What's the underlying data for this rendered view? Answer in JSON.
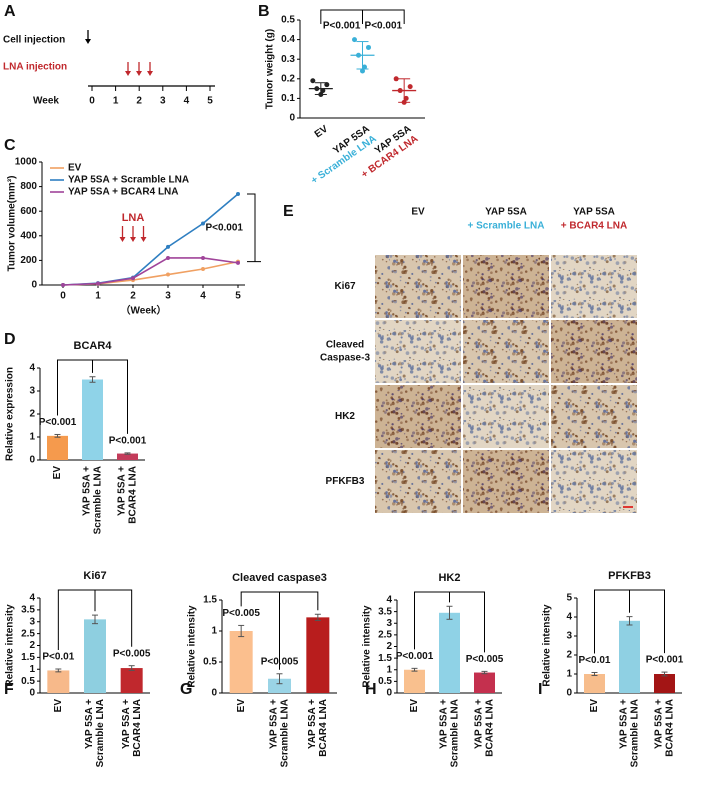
{
  "timeline": {
    "panel": "A",
    "labels": [
      "Cell injection",
      "LNA injection",
      "Week"
    ],
    "ticks": [
      0,
      1,
      2,
      3,
      4,
      5
    ]
  },
  "ihc": {
    "panel": "E",
    "columns": [
      [
        "EV"
      ],
      [
        "YAP 5SA",
        "+ Scramble LNA"
      ],
      [
        "YAP 5SA",
        "+ BCAR4 LNA"
      ]
    ],
    "column_colors": [
      "#222222",
      "#3ab0d8",
      "#c0282d"
    ],
    "rows": [
      [
        "Ki67"
      ],
      [
        "Cleaved",
        "Caspase-3"
      ],
      [
        "HK2"
      ],
      [
        "PFKFB3"
      ]
    ]
  },
  "chart_data": [
    {
      "panel": "B",
      "type": "scatter",
      "ylabel": "Tumor weight (g)",
      "categories": [
        [
          "EV"
        ],
        [
          "YAP 5SA",
          "+ Scramble LNA"
        ],
        [
          "YAP 5SA",
          "+ BCAR4 LNA"
        ]
      ],
      "colors": [
        "#222222",
        "#3ab0d8",
        "#c0282d"
      ],
      "values": [
        [
          0.12,
          0.14,
          0.15,
          0.17,
          0.19
        ],
        [
          0.24,
          0.26,
          0.32,
          0.36,
          0.4
        ],
        [
          0.08,
          0.1,
          0.14,
          0.16,
          0.2
        ]
      ],
      "means": [
        0.15,
        0.32,
        0.14
      ],
      "errors": [
        0.03,
        0.07,
        0.06
      ],
      "ylim": [
        0,
        0.5
      ],
      "yticks": [
        0,
        0.1,
        0.2,
        0.3,
        0.4,
        0.5
      ],
      "comparisons": [
        {
          "from": 0,
          "to": 1,
          "label": "P<0.001"
        },
        {
          "from": 1,
          "to": 2,
          "label": "P<0.001"
        }
      ]
    },
    {
      "panel": "C",
      "type": "line",
      "ylabel": "Tumor volume(mm³)",
      "xlabel": "（Week）",
      "x": [
        0,
        1,
        2,
        3,
        4,
        5
      ],
      "xlim": [
        -0.6,
        5.2
      ],
      "xticks": [
        0,
        1,
        2,
        3,
        4,
        5
      ],
      "ylim": [
        0,
        1000
      ],
      "yticks": [
        0,
        200,
        400,
        600,
        800,
        1000
      ],
      "series": [
        {
          "name": "EV",
          "color": "#f0a062",
          "values": [
            0,
            10,
            40,
            85,
            130,
            190
          ]
        },
        {
          "name": "YAP 5SA + Scramble LNA",
          "color": "#2f7fc1",
          "values": [
            0,
            15,
            60,
            310,
            500,
            740
          ]
        },
        {
          "name": "YAP 5SA + BCAR4 LNA",
          "color": "#a0449a",
          "values": [
            0,
            12,
            55,
            220,
            220,
            180
          ]
        }
      ],
      "legend": "upper left",
      "annotation": "LNA",
      "comparisons": [
        {
          "label": "P<0.001"
        }
      ]
    },
    {
      "panel": "D",
      "type": "bar",
      "title": "BCAR4",
      "ylabel": "Relative expression",
      "categories": [
        [
          "EV"
        ],
        [
          "YAP 5SA +",
          "Scramble LNA"
        ],
        [
          "YAP 5SA +",
          "BCAR4 LNA"
        ]
      ],
      "colors": [
        "#f59a4d",
        "#8fd3e8",
        "#c33b5a"
      ],
      "values": [
        1.05,
        3.5,
        0.28
      ],
      "errors": [
        0.06,
        0.12,
        0.03
      ],
      "ylim": [
        0,
        4
      ],
      "yticks": [
        0,
        1,
        2,
        3,
        4
      ],
      "comparisons": [
        {
          "from": 0,
          "to": 1,
          "label": "P<0.001"
        },
        {
          "from": 2,
          "to": 1,
          "label": "P<0.001"
        }
      ]
    },
    {
      "panel": "F",
      "type": "bar",
      "title": "Ki67",
      "ylabel": "Relative intensity",
      "categories": [
        [
          "EV"
        ],
        [
          "YAP 5SA +",
          "Scramble LNA"
        ],
        [
          "YAP 5SA +",
          "BCAR4 LNA"
        ]
      ],
      "colors": [
        "#f7b98a",
        "#8ecfe0",
        "#c0282d"
      ],
      "values": [
        0.95,
        3.1,
        1.05
      ],
      "errors": [
        0.06,
        0.18,
        0.1
      ],
      "ylim": [
        0,
        4
      ],
      "yticks": [
        0,
        0.5,
        1,
        1.5,
        2,
        2.5,
        3,
        3.5,
        4
      ],
      "comparisons": [
        {
          "from": 0,
          "to": 1,
          "label": "P<0.01"
        },
        {
          "from": 2,
          "to": 1,
          "label": "P<0.005"
        }
      ]
    },
    {
      "panel": "G",
      "type": "bar",
      "title": "Cleaved caspase3",
      "ylabel": "Relative intensity",
      "categories": [
        [
          "EV"
        ],
        [
          "YAP 5SA +",
          "Scramble LNA"
        ],
        [
          "YAP 5SA +",
          "BCAR4 LNA"
        ]
      ],
      "colors": [
        "#fbbf8e",
        "#9ad4e6",
        "#b81d1d"
      ],
      "values": [
        1.0,
        0.23,
        1.22
      ],
      "errors": [
        0.09,
        0.08,
        0.05
      ],
      "ylim": [
        0,
        1.5
      ],
      "yticks": [
        0,
        0.5,
        1,
        1.5
      ],
      "comparisons": [
        {
          "from": 0,
          "to": 1,
          "label": "P<0.005"
        },
        {
          "from": 1,
          "to": 2,
          "label": "P<0.005"
        }
      ]
    },
    {
      "panel": "H",
      "type": "bar",
      "title": "HK2",
      "ylabel": "Relative intensity",
      "categories": [
        [
          "EV"
        ],
        [
          "YAP 5SA +",
          "Scramble LNA"
        ],
        [
          "YAP 5SA +",
          "BCAR4 LNA"
        ]
      ],
      "colors": [
        "#f9c08e",
        "#8fd2e6",
        "#c4304e"
      ],
      "values": [
        1.0,
        3.45,
        0.88
      ],
      "errors": [
        0.06,
        0.28,
        0.05
      ],
      "ylim": [
        0,
        4
      ],
      "yticks": [
        0,
        0.5,
        1,
        1.5,
        2,
        2.5,
        3,
        3.5,
        4
      ],
      "comparisons": [
        {
          "from": 0,
          "to": 1,
          "label": "P<0.001"
        },
        {
          "from": 2,
          "to": 1,
          "label": "P<0.005"
        }
      ]
    },
    {
      "panel": "I",
      "type": "bar",
      "title": "PFKFB3",
      "ylabel": "Relative intensity",
      "categories": [
        [
          "EV"
        ],
        [
          "YAP 5SA +",
          "Scramble LNA"
        ],
        [
          "YAP 5SA +",
          "BCAR4 LNA"
        ]
      ],
      "colors": [
        "#f7bd8c",
        "#8fd0e3",
        "#a31515"
      ],
      "values": [
        1.0,
        3.8,
        1.0
      ],
      "errors": [
        0.08,
        0.22,
        0.1
      ],
      "ylim": [
        0,
        5
      ],
      "yticks": [
        0,
        1,
        2,
        3,
        4,
        5
      ],
      "comparisons": [
        {
          "from": 0,
          "to": 1,
          "label": "P<0.01"
        },
        {
          "from": 2,
          "to": 1,
          "label": "P<0.001"
        }
      ]
    }
  ]
}
